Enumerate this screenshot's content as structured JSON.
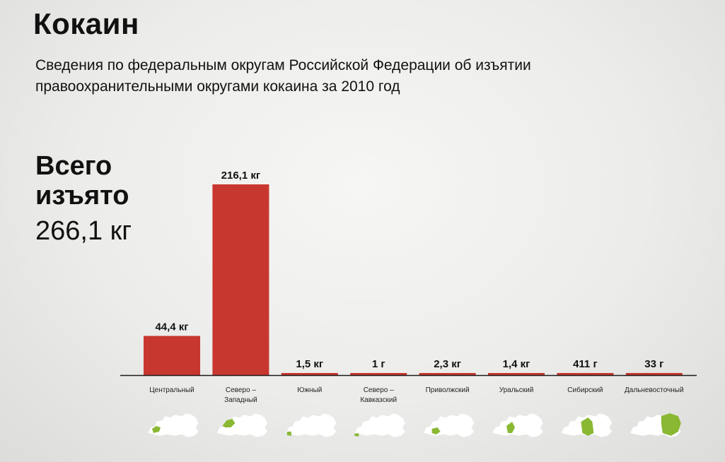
{
  "header": {
    "title": "Кокаин",
    "subtitle": "Сведения по федеральным округам Российской Федерации об изъятии правоохранительными округами кокаина за 2010 год"
  },
  "summary": {
    "label": "Всего изъято",
    "value": "266,1 кг"
  },
  "colors": {
    "bar": "#c8372f",
    "baseline": "#1a1a1a",
    "map_base": "#ffffff",
    "map_highlight": "#8ab833"
  },
  "chart_data": {
    "type": "bar",
    "title": "",
    "xlabel": "",
    "ylabel": "",
    "unit": "кг",
    "ylim": [
      0,
      216.1
    ],
    "grid": false,
    "categories": [
      [
        "Центральный"
      ],
      [
        "Северо –",
        "Западный"
      ],
      [
        "Южный"
      ],
      [
        "Северо –",
        "Кавказский"
      ],
      [
        "Приволжский"
      ],
      [
        "Уральский"
      ],
      [
        "Сибирский"
      ],
      [
        "Дальневосточный"
      ]
    ],
    "values": [
      44.4,
      216.1,
      1.5,
      0.001,
      2.3,
      1.4,
      0.411,
      0.033
    ],
    "data_labels": [
      "44,4 кг",
      "216,1 кг",
      "1,5 кг",
      "1 г",
      "2,3 кг",
      "1,4 кг",
      "411 г",
      "33 г"
    ]
  },
  "icons": [
    "russia-map-central-icon",
    "russia-map-northwest-icon",
    "russia-map-south-icon",
    "russia-map-north-caucasus-icon",
    "russia-map-volga-icon",
    "russia-map-ural-icon",
    "russia-map-siberia-icon",
    "russia-map-far-east-icon"
  ]
}
